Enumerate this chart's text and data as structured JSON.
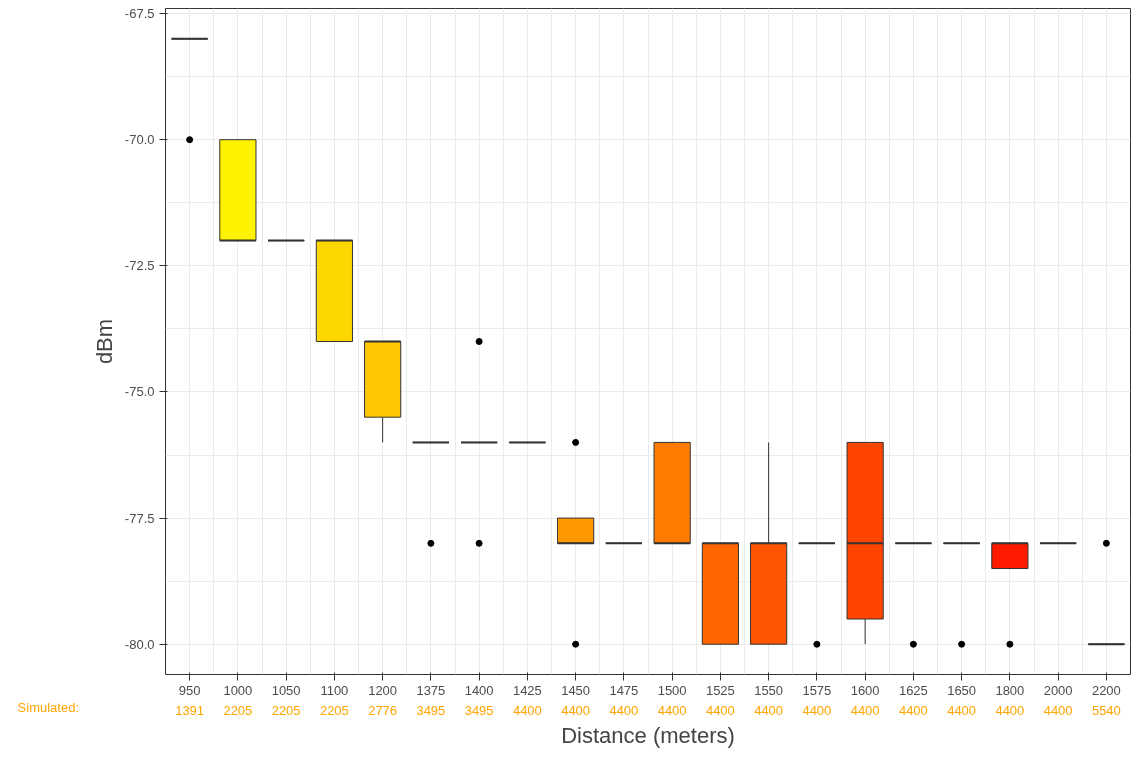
{
  "chart_data": {
    "type": "box",
    "xlabel": "Distance (meters)",
    "ylabel": "dBm",
    "categories": [
      "950",
      "1000",
      "1050",
      "1100",
      "1200",
      "1375",
      "1400",
      "1425",
      "1450",
      "1475",
      "1500",
      "1525",
      "1550",
      "1575",
      "1600",
      "1625",
      "1650",
      "1800",
      "2000",
      "2200"
    ],
    "colors": [
      null,
      "#fff200",
      null,
      "#ffd700",
      "#ffc800",
      null,
      null,
      null,
      "#ff9900",
      null,
      "#ff7c00",
      "#ff6600",
      "#ff5500",
      null,
      "#ff4400",
      null,
      null,
      "#ff1a00",
      null,
      null
    ],
    "boxes": [
      {
        "low": -68,
        "q1": -68,
        "median": -68,
        "q3": -68,
        "high": -68,
        "outliers": [
          -70
        ]
      },
      {
        "low": -72,
        "q1": -72,
        "median": -72,
        "q3": -70,
        "high": -70
      },
      {
        "low": -72,
        "q1": -72,
        "median": -72,
        "q3": -72,
        "high": -72
      },
      {
        "low": -74,
        "q1": -74,
        "median": -72,
        "q3": -72,
        "high": -72
      },
      {
        "low": -76,
        "q1": -75.5,
        "median": -74,
        "q3": -74,
        "high": -74
      },
      {
        "low": -76,
        "q1": -76,
        "median": -76,
        "q3": -76,
        "high": -76,
        "outliers": [
          -78
        ]
      },
      {
        "low": -76,
        "q1": -76,
        "median": -76,
        "q3": -76,
        "high": -76,
        "outliers": [
          -74,
          -78
        ]
      },
      {
        "low": -76,
        "q1": -76,
        "median": -76,
        "q3": -76,
        "high": -76
      },
      {
        "low": -78,
        "q1": -78,
        "median": -78,
        "q3": -77.5,
        "high": -77.5,
        "outliers": [
          -76,
          -80
        ]
      },
      {
        "low": -78,
        "q1": -78,
        "median": -78,
        "q3": -78,
        "high": -78
      },
      {
        "low": -78,
        "q1": -78,
        "median": -78,
        "q3": -76,
        "high": -76
      },
      {
        "low": -80,
        "q1": -80,
        "median": -78,
        "q3": -78,
        "high": -78
      },
      {
        "low": -80,
        "q1": -80,
        "median": -78,
        "q3": -78,
        "high": -76
      },
      {
        "low": -78,
        "q1": -78,
        "median": -78,
        "q3": -78,
        "high": -78,
        "outliers": [
          -80
        ]
      },
      {
        "low": -80,
        "q1": -79.5,
        "median": -78,
        "q3": -76,
        "high": -76
      },
      {
        "low": -78,
        "q1": -78,
        "median": -78,
        "q3": -78,
        "high": -78,
        "outliers": [
          -80
        ]
      },
      {
        "low": -78,
        "q1": -78,
        "median": -78,
        "q3": -78,
        "high": -78,
        "outliers": [
          -80
        ]
      },
      {
        "low": -78.5,
        "q1": -78.5,
        "median": -78,
        "q3": -78,
        "high": -78,
        "outliers": [
          -80
        ]
      },
      {
        "low": -78,
        "q1": -78,
        "median": -78,
        "q3": -78,
        "high": -78
      },
      {
        "low": -80,
        "q1": -80,
        "median": -80,
        "q3": -80,
        "high": -80,
        "outliers": [
          -78
        ]
      }
    ],
    "ylim": [
      -80.6,
      -67.4
    ],
    "yticks": [
      {
        "value": -80,
        "label": "-80.0"
      },
      {
        "value": -77.5,
        "label": "-77.5"
      },
      {
        "value": -75,
        "label": "-75.0"
      },
      {
        "value": -72.5,
        "label": "-72.5"
      },
      {
        "value": -70,
        "label": "-70.0"
      },
      {
        "value": -67.5,
        "label": "-67.5"
      }
    ],
    "grid": true,
    "annotations": [
      "Simulated:",
      "1391",
      "2205",
      "2205",
      "2205",
      "2776",
      "3495",
      "3495",
      "4400",
      "4400",
      "4400",
      "4400",
      "4400",
      "4400",
      "4400",
      "4400",
      "4400",
      "4400",
      "4400",
      "4400",
      "5540"
    ]
  }
}
